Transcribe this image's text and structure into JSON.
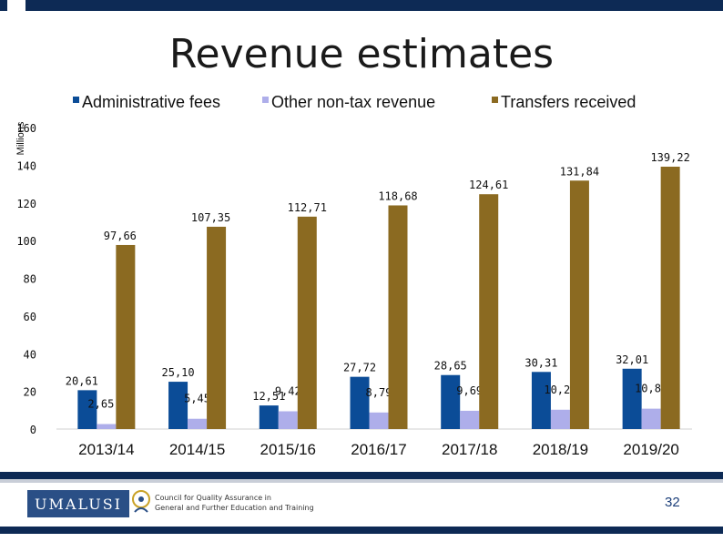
{
  "title": "Revenue estimates",
  "footer": {
    "logo_text": "UMALUSI",
    "org_line1": "Council for Quality Assurance in",
    "org_line2": "General and Further Education and Training",
    "page_number": "32"
  },
  "colors": {
    "header_band": "#0d2a55",
    "administrative_fees": "#0b4c97",
    "other_non_tax_revenue": "#aeaeea",
    "transfers_received": "#8b6a21"
  },
  "chart_data": {
    "type": "bar",
    "title": "Revenue estimates",
    "ylabel": "Millions",
    "xlabel": "",
    "ylim": [
      0,
      160
    ],
    "yticks": [
      0,
      20,
      40,
      60,
      80,
      100,
      120,
      140,
      160
    ],
    "grid": false,
    "legend_position": "top",
    "categories": [
      "2013/14",
      "2014/15",
      "2015/16",
      "2016/17",
      "2017/18",
      "2018/19",
      "2019/20"
    ],
    "series": [
      {
        "name": "Administrative fees",
        "color": "#0b4c97",
        "values": [
          20.61,
          25.1,
          12.51,
          27.72,
          28.65,
          30.31,
          32.01
        ],
        "labels": [
          "20,61",
          "25,10",
          "12,51",
          "27,72",
          "28,65",
          "30,31",
          "32,01"
        ]
      },
      {
        "name": "Other non-tax revenue",
        "color": "#aeaeea",
        "values": [
          2.65,
          5.45,
          9.42,
          8.79,
          9.69,
          10.25,
          10.82
        ],
        "labels": [
          "2,65",
          "5,45",
          "9,42",
          "8,79",
          "9,69",
          "10,25",
          "10,82"
        ]
      },
      {
        "name": "Transfers received",
        "color": "#8b6a21",
        "values": [
          97.66,
          107.35,
          112.71,
          118.68,
          124.61,
          131.84,
          139.22
        ],
        "labels": [
          "97,66",
          "107,35",
          "112,71",
          "118,68",
          "124,61",
          "131,84",
          "139,22"
        ]
      }
    ]
  }
}
